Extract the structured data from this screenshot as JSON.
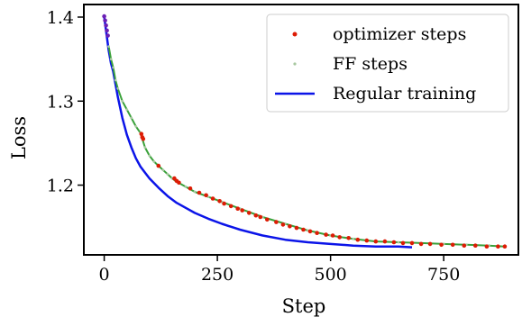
{
  "chart_data": {
    "type": "line",
    "xlabel": "Step",
    "ylabel": "Loss",
    "xlim": [
      -45,
      915
    ],
    "ylim": [
      1.117,
      1.415
    ],
    "xticks": [
      0,
      250,
      500,
      750
    ],
    "yticks": [
      1.2,
      1.3,
      1.4
    ],
    "ytick_labels": [
      "1.2",
      "1.3",
      "1.4"
    ],
    "grid": false,
    "legend_position": "top-right",
    "colors": {
      "optimizer": "#dd1c05",
      "ff": "#a8c8a0",
      "ff_line": "#3aa13a",
      "regular": "#0b14e8",
      "early": "#6a1fb5"
    },
    "series": [
      {
        "name": "optimizer steps",
        "kind": "scatter",
        "x": [
          0,
          2,
          4,
          6,
          8,
          82,
          84,
          86,
          120,
          155,
          160,
          165,
          190,
          210,
          225,
          240,
          255,
          265,
          280,
          295,
          305,
          320,
          335,
          345,
          360,
          380,
          395,
          410,
          425,
          440,
          455,
          470,
          490,
          505,
          520,
          540,
          560,
          580,
          600,
          620,
          640,
          660,
          680,
          700,
          720,
          745,
          770,
          795,
          820,
          845,
          870,
          885
        ],
        "y": [
          1.401,
          1.396,
          1.39,
          1.384,
          1.378,
          1.261,
          1.257,
          1.255,
          1.223,
          1.208,
          1.205,
          1.203,
          1.196,
          1.191,
          1.188,
          1.184,
          1.181,
          1.178,
          1.175,
          1.172,
          1.17,
          1.167,
          1.164,
          1.162,
          1.159,
          1.156,
          1.153,
          1.151,
          1.149,
          1.147,
          1.145,
          1.143,
          1.141,
          1.14,
          1.138,
          1.137,
          1.135,
          1.134,
          1.133,
          1.133,
          1.132,
          1.131,
          1.131,
          1.13,
          1.13,
          1.129,
          1.129,
          1.128,
          1.128,
          1.127,
          1.127,
          1.127
        ]
      },
      {
        "name": "FF steps",
        "kind": "scatter-line",
        "x": [
          10,
          15,
          20,
          25,
          30,
          40,
          50,
          60,
          70,
          80,
          90,
          100,
          110,
          120,
          130,
          140,
          150,
          160,
          180,
          200,
          230,
          260,
          300,
          350,
          400,
          450,
          500,
          550,
          600,
          650,
          700,
          750,
          800,
          850,
          885
        ],
        "y": [
          1.365,
          1.35,
          1.34,
          1.325,
          1.315,
          1.3,
          1.29,
          1.28,
          1.27,
          1.262,
          1.245,
          1.235,
          1.228,
          1.223,
          1.218,
          1.213,
          1.208,
          1.204,
          1.198,
          1.192,
          1.186,
          1.18,
          1.172,
          1.162,
          1.154,
          1.146,
          1.14,
          1.136,
          1.133,
          1.132,
          1.131,
          1.13,
          1.129,
          1.128,
          1.127
        ]
      },
      {
        "name": "Regular training",
        "kind": "line",
        "x": [
          0,
          5,
          10,
          15,
          20,
          30,
          40,
          50,
          60,
          70,
          80,
          90,
          100,
          120,
          140,
          160,
          180,
          200,
          230,
          260,
          300,
          350,
          400,
          450,
          500,
          550,
          600,
          650,
          680
        ],
        "y": [
          1.4,
          1.38,
          1.36,
          1.345,
          1.335,
          1.305,
          1.28,
          1.26,
          1.245,
          1.232,
          1.222,
          1.215,
          1.208,
          1.197,
          1.187,
          1.179,
          1.173,
          1.167,
          1.16,
          1.154,
          1.147,
          1.14,
          1.135,
          1.132,
          1.13,
          1.128,
          1.127,
          1.127,
          1.126
        ]
      }
    ]
  }
}
